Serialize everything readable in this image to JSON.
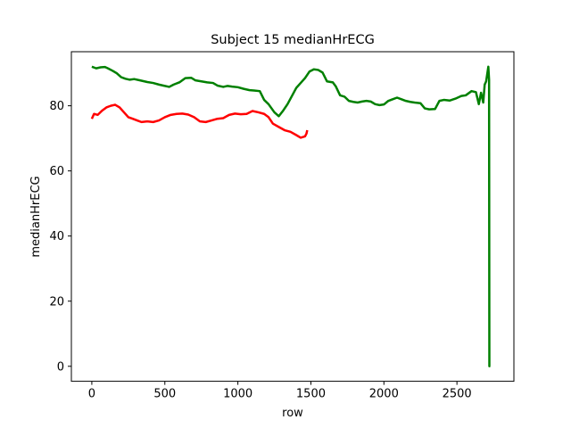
{
  "chart_data": {
    "type": "line",
    "title": "Subject 15 medianHrECG",
    "xlabel": "row",
    "ylabel": "medianHrECG",
    "xlim": [
      -140,
      2890
    ],
    "ylim": [
      -4.6,
      96.6
    ],
    "xticks": [
      0,
      500,
      1000,
      1500,
      2000,
      2500
    ],
    "yticks": [
      0,
      20,
      40,
      60,
      80
    ],
    "grid": false,
    "series": [
      {
        "color": "#ff0000",
        "points": [
          [
            0,
            76
          ],
          [
            15,
            77.5
          ],
          [
            40,
            77.2
          ],
          [
            70,
            78.5
          ],
          [
            100,
            79.5
          ],
          [
            130,
            80
          ],
          [
            160,
            80.3
          ],
          [
            190,
            79.5
          ],
          [
            220,
            78
          ],
          [
            250,
            76.5
          ],
          [
            280,
            76
          ],
          [
            310,
            75.5
          ],
          [
            340,
            75
          ],
          [
            380,
            75.2
          ],
          [
            420,
            75
          ],
          [
            460,
            75.5
          ],
          [
            500,
            76.5
          ],
          [
            540,
            77.2
          ],
          [
            580,
            77.5
          ],
          [
            620,
            77.6
          ],
          [
            660,
            77.3
          ],
          [
            700,
            76.5
          ],
          [
            740,
            75.2
          ],
          [
            780,
            75
          ],
          [
            820,
            75.5
          ],
          [
            860,
            76
          ],
          [
            900,
            76.2
          ],
          [
            940,
            77.2
          ],
          [
            980,
            77.6
          ],
          [
            1020,
            77.4
          ],
          [
            1060,
            77.5
          ],
          [
            1100,
            78.4
          ],
          [
            1140,
            78
          ],
          [
            1180,
            77.5
          ],
          [
            1210,
            76.5
          ],
          [
            1240,
            74.5
          ],
          [
            1280,
            73.5
          ],
          [
            1320,
            72.5
          ],
          [
            1360,
            72
          ],
          [
            1400,
            71
          ],
          [
            1430,
            70.2
          ],
          [
            1460,
            70.6
          ],
          [
            1470,
            71.5
          ],
          [
            1475,
            72.5
          ]
        ]
      },
      {
        "color": "#008000",
        "points": [
          [
            0,
            92
          ],
          [
            30,
            91.5
          ],
          [
            60,
            91.8
          ],
          [
            90,
            91.9
          ],
          [
            110,
            91.5
          ],
          [
            140,
            90.8
          ],
          [
            170,
            90
          ],
          [
            200,
            88.8
          ],
          [
            230,
            88.3
          ],
          [
            260,
            88
          ],
          [
            290,
            88.2
          ],
          [
            330,
            87.8
          ],
          [
            380,
            87.3
          ],
          [
            420,
            87
          ],
          [
            460,
            86.5
          ],
          [
            490,
            86.2
          ],
          [
            530,
            85.8
          ],
          [
            560,
            86.5
          ],
          [
            600,
            87.2
          ],
          [
            640,
            88.5
          ],
          [
            680,
            88.6
          ],
          [
            710,
            87.8
          ],
          [
            750,
            87.5
          ],
          [
            790,
            87.2
          ],
          [
            830,
            87
          ],
          [
            860,
            86.2
          ],
          [
            900,
            85.8
          ],
          [
            930,
            86.1
          ],
          [
            960,
            85.9
          ],
          [
            1000,
            85.7
          ],
          [
            1040,
            85.2
          ],
          [
            1080,
            84.8
          ],
          [
            1110,
            84.7
          ],
          [
            1150,
            84.5
          ],
          [
            1180,
            81.8
          ],
          [
            1210,
            80.5
          ],
          [
            1250,
            78
          ],
          [
            1280,
            76.8
          ],
          [
            1310,
            78.5
          ],
          [
            1340,
            80.5
          ],
          [
            1370,
            83
          ],
          [
            1400,
            85.5
          ],
          [
            1430,
            87
          ],
          [
            1460,
            88.5
          ],
          [
            1490,
            90.5
          ],
          [
            1520,
            91.2
          ],
          [
            1550,
            91
          ],
          [
            1580,
            90.2
          ],
          [
            1610,
            87.5
          ],
          [
            1650,
            87.2
          ],
          [
            1670,
            86
          ],
          [
            1700,
            83.2
          ],
          [
            1730,
            82.8
          ],
          [
            1760,
            81.5
          ],
          [
            1790,
            81.2
          ],
          [
            1820,
            81
          ],
          [
            1850,
            81.3
          ],
          [
            1880,
            81.5
          ],
          [
            1910,
            81.3
          ],
          [
            1940,
            80.5
          ],
          [
            1970,
            80.2
          ],
          [
            2000,
            80.4
          ],
          [
            2030,
            81.5
          ],
          [
            2060,
            82
          ],
          [
            2090,
            82.5
          ],
          [
            2120,
            82
          ],
          [
            2150,
            81.5
          ],
          [
            2180,
            81.2
          ],
          [
            2210,
            81
          ],
          [
            2250,
            80.8
          ],
          [
            2280,
            79.2
          ],
          [
            2310,
            78.9
          ],
          [
            2350,
            79
          ],
          [
            2380,
            81.5
          ],
          [
            2410,
            81.8
          ],
          [
            2450,
            81.6
          ],
          [
            2490,
            82.2
          ],
          [
            2530,
            83
          ],
          [
            2560,
            83.2
          ],
          [
            2600,
            84.5
          ],
          [
            2630,
            84.2
          ],
          [
            2650,
            80.5
          ],
          [
            2665,
            84
          ],
          [
            2680,
            81
          ],
          [
            2690,
            86.5
          ],
          [
            2700,
            87.5
          ],
          [
            2710,
            90.5
          ],
          [
            2715,
            92
          ],
          [
            2720,
            88
          ],
          [
            2722,
            0
          ],
          [
            2728,
            0
          ]
        ]
      }
    ]
  }
}
